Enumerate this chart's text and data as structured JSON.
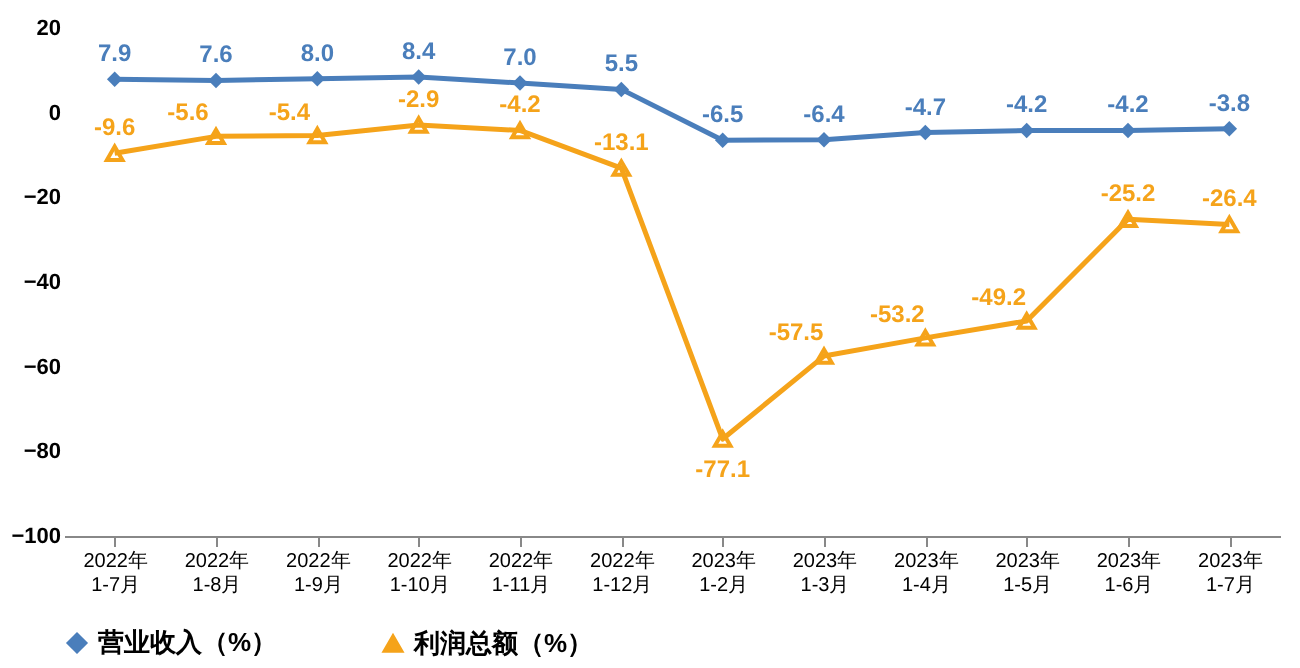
{
  "chart_data": {
    "type": "line",
    "categories": [
      "2022年\n1-7月",
      "2022年\n1-8月",
      "2022年\n1-9月",
      "2022年\n1-10月",
      "2022年\n1-11月",
      "2022年\n1-12月",
      "2023年\n1-2月",
      "2023年\n1-3月",
      "2023年\n1-4月",
      "2023年\n1-5月",
      "2023年\n1-6月",
      "2023年\n1-7月"
    ],
    "series": [
      {
        "name": "营业收入（%）",
        "color": "#4a7ebb",
        "marker": "diamond",
        "values": [
          7.9,
          7.6,
          8.0,
          8.4,
          7.0,
          5.5,
          -6.5,
          -6.4,
          -4.7,
          -4.2,
          -4.2,
          -3.8
        ],
        "value_labels": [
          "7.9",
          "7.6",
          "8.0",
          "8.4",
          "7.0",
          "5.5",
          "-6.5",
          "-6.4",
          "-4.7",
          "-4.2",
          "-4.2",
          "-3.8"
        ]
      },
      {
        "name": "利润总额（%）",
        "color": "#f5a31a",
        "marker": "triangle",
        "values": [
          -9.6,
          -5.6,
          -5.4,
          -2.9,
          -4.2,
          -13.1,
          -77.1,
          -57.5,
          -53.2,
          -49.2,
          -25.2,
          -26.4
        ],
        "value_labels": [
          "-9.6",
          "-5.6",
          "-5.4",
          "-2.9",
          "-4.2",
          "-13.1",
          "-77.1",
          "-57.5",
          "-53.2",
          "-49.2",
          "-25.2",
          "-26.4"
        ]
      }
    ],
    "ylim": [
      -100,
      20
    ],
    "yticks": [
      -100,
      -80,
      -60,
      -40,
      -20,
      0,
      20
    ],
    "grid": false,
    "legend": "bottom",
    "line_style": "solid"
  }
}
